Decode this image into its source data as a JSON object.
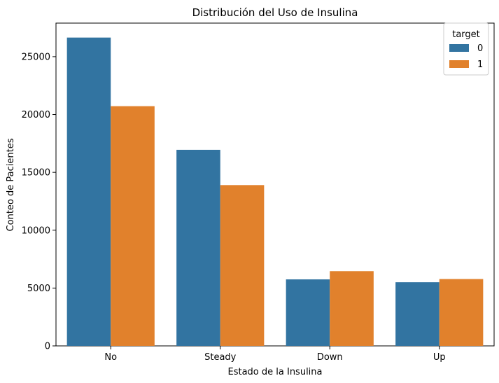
{
  "chart_data": {
    "type": "bar",
    "title": "Distribución del Uso de Insulina",
    "xlabel": "Estado de la Insulina",
    "ylabel": "Conteo de Pacientes",
    "categories": [
      "No",
      "Steady",
      "Down",
      "Up"
    ],
    "series": [
      {
        "name": "0",
        "values": [
          26650,
          16950,
          5750,
          5500
        ],
        "color": "#3274a1"
      },
      {
        "name": "1",
        "values": [
          20720,
          13900,
          6460,
          5780
        ],
        "color": "#e1812c"
      }
    ],
    "ylim": [
      0,
      27900
    ],
    "yticks": [
      0,
      5000,
      10000,
      15000,
      20000,
      25000
    ],
    "grid": false,
    "legend": {
      "title": "target",
      "placement": "top-right"
    }
  }
}
